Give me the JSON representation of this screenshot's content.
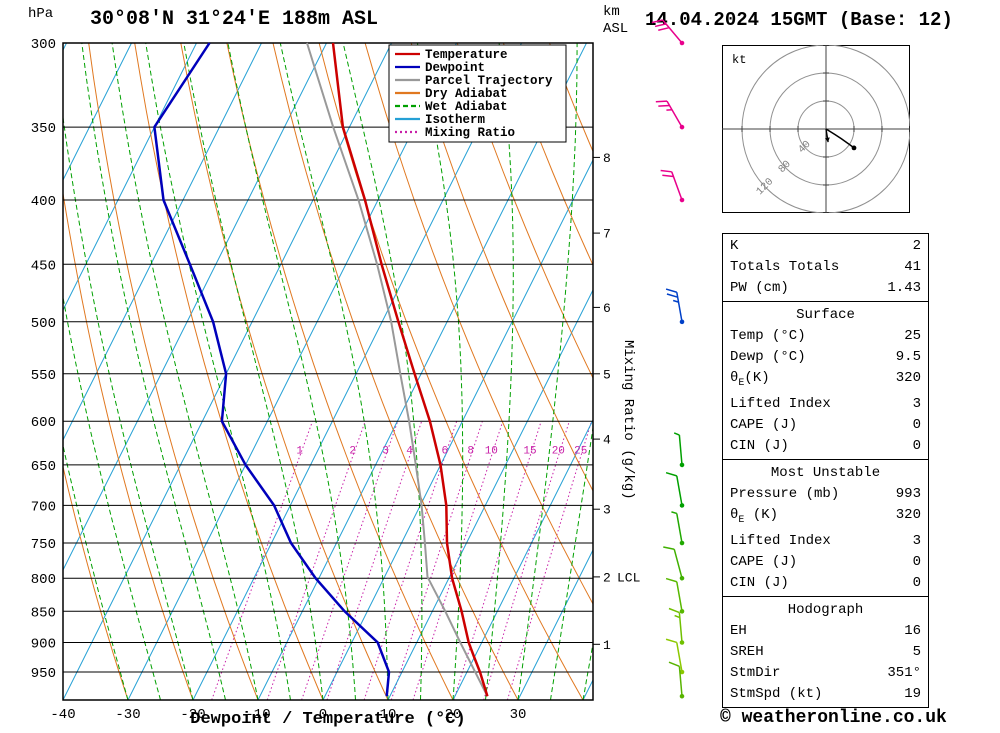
{
  "header": {
    "pressure_unit": "hPa",
    "station": "30°08'N 31°24'E 188m ASL",
    "datetime": "14.04.2024 15GMT (Base: 12)",
    "altitude_unit_line1": "km",
    "altitude_unit_line2": "ASL"
  },
  "axes": {
    "pressure_ticks": [
      300,
      350,
      400,
      450,
      500,
      550,
      600,
      650,
      700,
      750,
      800,
      850,
      900,
      950
    ],
    "temp_ticks": [
      -40,
      -30,
      -20,
      -10,
      0,
      10,
      20,
      30
    ],
    "xlabel": "Dewpoint / Temperature (°C)",
    "right_axis_label": "Mixing Ratio (g/kg)",
    "km_ticks": [
      {
        "label": "1",
        "p": 903
      },
      {
        "label": "2",
        "p": 798
      },
      {
        "label": "3",
        "p": 705
      },
      {
        "label": "4",
        "p": 620
      },
      {
        "label": "5",
        "p": 550
      },
      {
        "label": "6",
        "p": 487
      },
      {
        "label": "7",
        "p": 425
      },
      {
        "label": "8",
        "p": 370
      }
    ],
    "lcl": {
      "label": "LCL",
      "p": 798
    }
  },
  "legend": [
    {
      "label": "Temperature",
      "color": "#cc0000",
      "style": "solid"
    },
    {
      "label": "Dewpoint",
      "color": "#0000bb",
      "style": "solid"
    },
    {
      "label": "Parcel Trajectory",
      "color": "#999999",
      "style": "solid"
    },
    {
      "label": "Dry Adiabat",
      "color": "#e07820",
      "style": "solid"
    },
    {
      "label": "Wet Adiabat",
      "color": "#00a000",
      "style": "dashed"
    },
    {
      "label": "Isotherm",
      "color": "#25a0d5",
      "style": "solid"
    },
    {
      "label": "Mixing Ratio",
      "color": "#c820a8",
      "style": "dotted"
    }
  ],
  "chart_data": {
    "type": "skewt-log-p",
    "pressure_axis_range": [
      300,
      1000
    ],
    "temp_axis_range": [
      -40,
      40
    ],
    "isotherm_step_c": 10,
    "profile_format": "[pressure_hPa, value_C]",
    "mixing_ratio_lines": [
      1,
      2,
      3,
      4,
      6,
      8,
      10,
      15,
      20,
      25
    ],
    "temperature_profile": [
      [
        993,
        25
      ],
      [
        950,
        22
      ],
      [
        925,
        20
      ],
      [
        900,
        18
      ],
      [
        850,
        14.5
      ],
      [
        800,
        10.5
      ],
      [
        750,
        7
      ],
      [
        700,
        4
      ],
      [
        650,
        0
      ],
      [
        600,
        -5
      ],
      [
        550,
        -11
      ],
      [
        500,
        -17.5
      ],
      [
        450,
        -24.5
      ],
      [
        400,
        -32
      ],
      [
        350,
        -41
      ],
      [
        300,
        -49
      ]
    ],
    "dewpoint_profile": [
      [
        993,
        9.5
      ],
      [
        950,
        8
      ],
      [
        900,
        4
      ],
      [
        850,
        -3.5
      ],
      [
        800,
        -10.5
      ],
      [
        750,
        -17
      ],
      [
        700,
        -22.5
      ],
      [
        650,
        -30
      ],
      [
        600,
        -37
      ],
      [
        550,
        -40
      ],
      [
        500,
        -46
      ],
      [
        450,
        -54
      ],
      [
        400,
        -63
      ],
      [
        350,
        -70
      ],
      [
        300,
        -68
      ]
    ],
    "parcel_profile": [
      [
        993,
        25
      ],
      [
        900,
        16.7
      ],
      [
        850,
        12
      ],
      [
        798,
        6.6
      ],
      [
        750,
        3.6
      ],
      [
        700,
        0.2
      ],
      [
        650,
        -3.8
      ],
      [
        600,
        -8.2
      ],
      [
        550,
        -13.2
      ],
      [
        500,
        -18.6
      ],
      [
        450,
        -25.2
      ],
      [
        400,
        -33
      ],
      [
        350,
        -42.5
      ],
      [
        300,
        -53
      ]
    ],
    "wind_barbs": [
      {
        "p": 300,
        "spd_kt": 30,
        "dir_deg": 320,
        "color": "#e8008c"
      },
      {
        "p": 350,
        "spd_kt": 25,
        "dir_deg": 330,
        "color": "#e8008c"
      },
      {
        "p": 400,
        "spd_kt": 20,
        "dir_deg": 340,
        "color": "#e8008c"
      },
      {
        "p": 500,
        "spd_kt": 25,
        "dir_deg": 350,
        "color": "#0040c8"
      },
      {
        "p": 650,
        "spd_kt": 5,
        "dir_deg": 355,
        "color": "#00a000"
      },
      {
        "p": 700,
        "spd_kt": 10,
        "dir_deg": 350,
        "color": "#00a000"
      },
      {
        "p": 750,
        "spd_kt": 5,
        "dir_deg": 350,
        "color": "#20a800"
      },
      {
        "p": 800,
        "spd_kt": 10,
        "dir_deg": 345,
        "color": "#40b000"
      },
      {
        "p": 850,
        "spd_kt": 10,
        "dir_deg": 350,
        "color": "#58b800"
      },
      {
        "p": 900,
        "spd_kt": 15,
        "dir_deg": 355,
        "color": "#70c000"
      },
      {
        "p": 950,
        "spd_kt": 10,
        "dir_deg": 350,
        "color": "#8cc800"
      },
      {
        "p": 993,
        "spd_kt": 10,
        "dir_deg": 355,
        "color": "#58b400"
      }
    ],
    "colors": {
      "temperature": "#cc0000",
      "dewpoint": "#0000bb",
      "parcel": "#999999",
      "dry_adiabat": "#e07820",
      "wet_adiabat": "#00a000",
      "isotherm": "#25a0d5",
      "mixing_ratio": "#c820a8"
    }
  },
  "hodograph": {
    "unit_label": "kt",
    "rings": [
      {
        "label": "40",
        "r_kt": 40
      },
      {
        "label": "80",
        "r_kt": 80
      },
      {
        "label": "120",
        "r_kt": 120
      }
    ],
    "trace_uv_kt": [
      [
        0,
        0
      ],
      [
        5,
        -3
      ],
      [
        13,
        -8
      ],
      [
        22,
        -14
      ],
      [
        32,
        -21
      ],
      [
        40,
        -27
      ]
    ],
    "storm_motion": {
      "dir_deg": 351,
      "speed_kt": 19
    }
  },
  "table": {
    "sections": [
      {
        "header": null,
        "rows": [
          [
            "K",
            "2"
          ],
          [
            "Totals Totals",
            "41"
          ],
          [
            "PW (cm)",
            "1.43"
          ]
        ]
      },
      {
        "header": "Surface",
        "rows": [
          [
            "Temp (°C)",
            "25"
          ],
          [
            "Dewp (°C)",
            "9.5"
          ],
          [
            "θ_E(K)",
            "320"
          ],
          [
            "Lifted Index",
            "3"
          ],
          [
            "CAPE (J)",
            "0"
          ],
          [
            "CIN (J)",
            "0"
          ]
        ]
      },
      {
        "header": "Most Unstable",
        "rows": [
          [
            "Pressure (mb)",
            "993"
          ],
          [
            "θ_E (K)",
            "320"
          ],
          [
            "Lifted Index",
            "3"
          ],
          [
            "CAPE (J)",
            "0"
          ],
          [
            "CIN (J)",
            "0"
          ]
        ]
      },
      {
        "header": "Hodograph",
        "rows": [
          [
            "EH",
            "16"
          ],
          [
            "SREH",
            "5"
          ],
          [
            "StmDir",
            "351°"
          ],
          [
            "StmSpd (kt)",
            "19"
          ]
        ]
      }
    ]
  },
  "footer": {
    "copyright": "© weatheronline.co.uk"
  }
}
